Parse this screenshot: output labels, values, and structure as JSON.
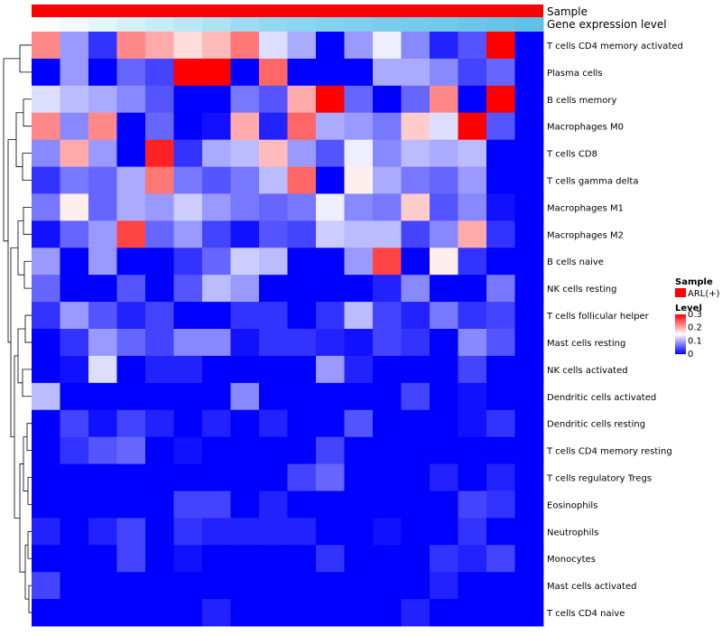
{
  "chart_data": {
    "type": "heatmap",
    "title": "",
    "top_annotations": [
      {
        "label": "Sample"
      },
      {
        "label": "Gene expression level",
        "colors": [
          "#ffffff",
          "#f2fafd",
          "#e4f5fb",
          "#d6f0fa",
          "#c8ebf8",
          "#bbe6f6",
          "#ade1f4",
          "#9fdcf3",
          "#93d8f1",
          "#8ad5f0",
          "#85d2ef",
          "#80d0ee",
          "#7bcded",
          "#76cbec",
          "#71c9eb",
          "#6cc6ea",
          "#66c4e8",
          "#60c1e7"
        ]
      }
    ],
    "legend": {
      "sample_title": "Sample",
      "sample_items": [
        {
          "label": "ARL(+)",
          "color": "#ff0000"
        }
      ],
      "level_title": "Level",
      "level_ticks": [
        "0.3",
        "0.2",
        "0.1",
        "0"
      ],
      "level_tick_values": [
        0.3,
        0.2,
        0.1,
        0.0
      ],
      "color_low": "#0000ff",
      "color_mid": "#ffffff",
      "color_high": "#ff0000",
      "range": [
        0,
        0.3
      ]
    },
    "rows": [
      "T cells CD4 memory activated",
      "Plasma cells",
      "B cells memory",
      "Macrophages M0",
      "T cells CD8",
      "T cells gamma delta",
      "Macrophages M1",
      "Macrophages M2",
      "B cells naive",
      "NK cells resting",
      "T cells follicular helper",
      "Mast cells resting",
      "NK cells activated",
      "Dendritic cells activated",
      "Dendritic cells resting",
      "T cells CD4 memory resting",
      "T cells regulatory  Tregs",
      "Eosinophils",
      "Neutrophils",
      "Monocytes",
      "Mast cells activated",
      "T cells CD4 naive"
    ],
    "columns": 18,
    "values": [
      [
        0.22,
        0.09,
        0.03,
        0.22,
        0.2,
        0.17,
        0.19,
        0.23,
        0.13,
        0.1,
        0.0,
        0.09,
        0.14,
        0.08,
        0.02,
        0.05,
        0.3,
        0.0
      ],
      [
        0.0,
        0.09,
        0.0,
        0.06,
        0.04,
        0.3,
        0.3,
        0.0,
        0.24,
        0.0,
        0.0,
        0.0,
        0.1,
        0.1,
        0.08,
        0.04,
        0.06,
        0.0
      ],
      [
        0.13,
        0.11,
        0.1,
        0.08,
        0.05,
        0.0,
        0.0,
        0.07,
        0.05,
        0.2,
        0.3,
        0.06,
        0.0,
        0.06,
        0.22,
        0.0,
        0.3,
        0.0
      ],
      [
        0.22,
        0.08,
        0.22,
        0.0,
        0.06,
        0.0,
        0.01,
        0.2,
        0.02,
        0.24,
        0.1,
        0.09,
        0.07,
        0.18,
        0.13,
        0.3,
        0.05,
        0.0
      ],
      [
        0.08,
        0.2,
        0.09,
        0.0,
        0.28,
        0.03,
        0.1,
        0.11,
        0.19,
        0.09,
        0.05,
        0.14,
        0.08,
        0.11,
        0.1,
        0.11,
        0.0,
        0.0
      ],
      [
        0.03,
        0.07,
        0.06,
        0.1,
        0.23,
        0.07,
        0.05,
        0.07,
        0.11,
        0.24,
        0.0,
        0.16,
        0.1,
        0.07,
        0.06,
        0.09,
        0.0,
        0.0
      ],
      [
        0.07,
        0.16,
        0.06,
        0.1,
        0.09,
        0.12,
        0.09,
        0.07,
        0.06,
        0.07,
        0.14,
        0.08,
        0.07,
        0.18,
        0.05,
        0.08,
        0.01,
        0.0
      ],
      [
        0.01,
        0.06,
        0.09,
        0.26,
        0.06,
        0.09,
        0.04,
        0.01,
        0.05,
        0.04,
        0.12,
        0.11,
        0.11,
        0.04,
        0.08,
        0.2,
        0.03,
        0.0
      ],
      [
        0.09,
        0.0,
        0.09,
        0.0,
        0.0,
        0.03,
        0.06,
        0.12,
        0.11,
        0.0,
        0.0,
        0.09,
        0.26,
        0.0,
        0.16,
        0.03,
        0.0,
        0.0
      ],
      [
        0.06,
        0.0,
        0.0,
        0.05,
        0.0,
        0.05,
        0.11,
        0.09,
        0.0,
        0.0,
        0.0,
        0.0,
        0.02,
        0.08,
        0.0,
        0.0,
        0.07,
        0.0
      ],
      [
        0.03,
        0.09,
        0.05,
        0.02,
        0.04,
        0.0,
        0.0,
        0.03,
        0.03,
        0.0,
        0.03,
        0.11,
        0.04,
        0.02,
        0.07,
        0.03,
        0.04,
        0.0
      ],
      [
        0.0,
        0.03,
        0.09,
        0.06,
        0.04,
        0.08,
        0.08,
        0.01,
        0.03,
        0.03,
        0.02,
        0.01,
        0.04,
        0.03,
        0.0,
        0.08,
        0.05,
        0.0
      ],
      [
        0.0,
        0.01,
        0.13,
        0.0,
        0.02,
        0.02,
        0.0,
        0.0,
        0.0,
        0.0,
        0.09,
        0.02,
        0.0,
        0.0,
        0.0,
        0.04,
        0.0,
        0.0
      ],
      [
        0.11,
        0.0,
        0.0,
        0.0,
        0.0,
        0.0,
        0.0,
        0.08,
        0.0,
        0.0,
        0.0,
        0.0,
        0.0,
        0.04,
        0.0,
        0.01,
        0.0,
        0.0
      ],
      [
        0.0,
        0.04,
        0.01,
        0.04,
        0.02,
        0.0,
        0.02,
        0.0,
        0.02,
        0.0,
        0.0,
        0.05,
        0.0,
        0.0,
        0.0,
        0.01,
        0.03,
        0.0
      ],
      [
        0.0,
        0.03,
        0.05,
        0.06,
        0.0,
        0.01,
        0.0,
        0.0,
        0.0,
        0.0,
        0.04,
        0.0,
        0.0,
        0.0,
        0.0,
        0.0,
        0.0,
        0.0
      ],
      [
        0.0,
        0.0,
        0.0,
        0.0,
        0.0,
        0.0,
        0.0,
        0.0,
        0.0,
        0.04,
        0.06,
        0.0,
        0.0,
        0.0,
        0.02,
        0.0,
        0.02,
        0.0
      ],
      [
        0.0,
        0.0,
        0.0,
        0.0,
        0.0,
        0.04,
        0.04,
        0.0,
        0.02,
        0.0,
        0.0,
        0.0,
        0.0,
        0.0,
        0.0,
        0.04,
        0.03,
        0.0
      ],
      [
        0.02,
        0.0,
        0.02,
        0.04,
        0.0,
        0.03,
        0.02,
        0.02,
        0.02,
        0.02,
        0.0,
        0.0,
        0.01,
        0.0,
        0.0,
        0.03,
        0.0,
        0.0
      ],
      [
        0.0,
        0.0,
        0.0,
        0.04,
        0.0,
        0.01,
        0.0,
        0.0,
        0.0,
        0.0,
        0.03,
        0.0,
        0.0,
        0.0,
        0.03,
        0.02,
        0.04,
        0.0
      ],
      [
        0.04,
        0.0,
        0.0,
        0.0,
        0.0,
        0.0,
        0.0,
        0.0,
        0.0,
        0.0,
        0.0,
        0.0,
        0.0,
        0.0,
        0.02,
        0.0,
        0.0,
        0.0
      ],
      [
        0.0,
        0.0,
        0.0,
        0.0,
        0.0,
        0.0,
        0.02,
        0.0,
        0.0,
        0.0,
        0.0,
        0.0,
        0.0,
        0.02,
        0.0,
        0.0,
        0.0,
        0.0
      ]
    ]
  }
}
